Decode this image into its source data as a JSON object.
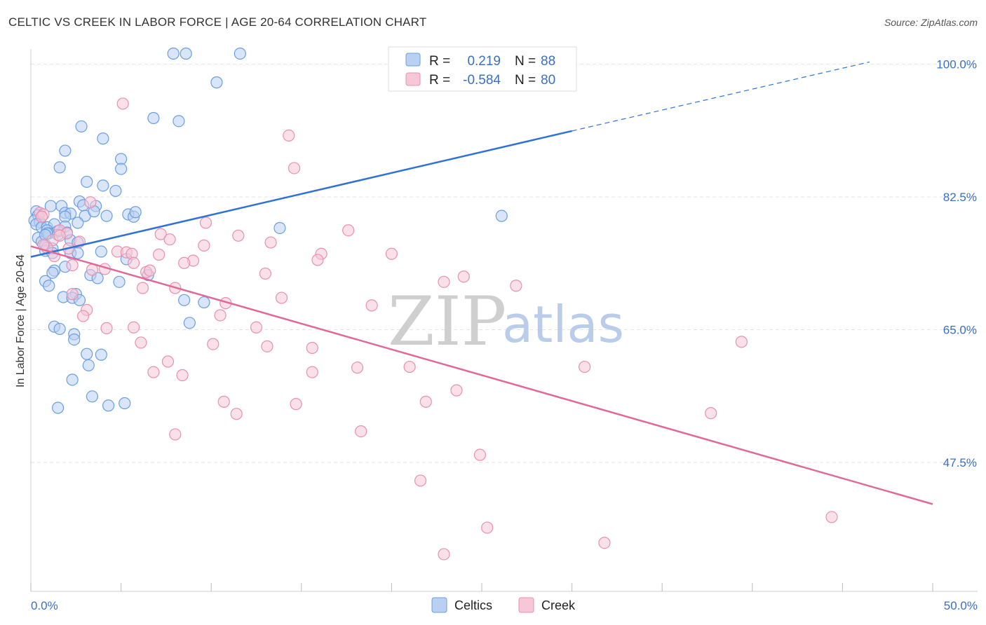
{
  "title": "CELTIC VS CREEK IN LABOR FORCE | AGE 20-64 CORRELATION CHART",
  "source": "Source: ZipAtlas.com",
  "watermark": {
    "zip": "ZIP",
    "atlas": "atlas"
  },
  "colors": {
    "celtics": "#6a9ee0",
    "celtics_fill": "#b9d0f2",
    "celtics_line": "#2f72d6",
    "creek": "#e890ad",
    "creek_fill": "#f6c8d7",
    "creek_line": "#e0699a",
    "tick_label": "#3a6fc4"
  },
  "legend": {
    "r_label": "R =",
    "n_label": "N =",
    "rows": [
      {
        "name": "Celtics",
        "r": "0.219",
        "n": "88"
      },
      {
        "name": "Creek",
        "r": "-0.584",
        "n": "80"
      }
    ]
  },
  "bottom_legend": [
    "Celtics",
    "Creek"
  ],
  "chart_data": {
    "type": "scatter",
    "title": "CELTIC VS CREEK IN LABOR FORCE | AGE 20-64 CORRELATION CHART",
    "xlabel": "",
    "ylabel": "In Labor Force | Age 20-64",
    "xlim": [
      0,
      50
    ],
    "ylim": [
      30.5,
      102
    ],
    "x_tick_labels": [
      "0.0%",
      "50.0%"
    ],
    "y_ticks": [
      47.5,
      65.0,
      82.5,
      100.0
    ],
    "y_tick_labels": [
      "47.5%",
      "65.0%",
      "82.5%",
      "100.0%"
    ],
    "grid": "horizontal dashed",
    "legend_position": "top-center",
    "series": [
      {
        "name": "Celtics",
        "points": [
          [
            7.9,
            101.4
          ],
          [
            8.6,
            101.4
          ],
          [
            11.6,
            101.4
          ],
          [
            10.3,
            97.6
          ],
          [
            6.8,
            92.9
          ],
          [
            8.2,
            92.5
          ],
          [
            2.8,
            91.8
          ],
          [
            4.0,
            90.2
          ],
          [
            1.9,
            88.6
          ],
          [
            5.0,
            87.5
          ],
          [
            1.6,
            86.4
          ],
          [
            5.0,
            86.2
          ],
          [
            3.1,
            84.5
          ],
          [
            4.0,
            84.0
          ],
          [
            4.7,
            83.3
          ],
          [
            2.7,
            81.9
          ],
          [
            2.9,
            81.4
          ],
          [
            1.1,
            81.3
          ],
          [
            1.7,
            81.3
          ],
          [
            0.3,
            80.6
          ],
          [
            0.4,
            80.1
          ],
          [
            1.9,
            80.4
          ],
          [
            2.2,
            80.3
          ],
          [
            3.0,
            80.0
          ],
          [
            4.2,
            80.0
          ],
          [
            5.4,
            80.2
          ],
          [
            5.7,
            79.9
          ],
          [
            1.9,
            79.9
          ],
          [
            0.2,
            79.4
          ],
          [
            0.5,
            79.2
          ],
          [
            0.3,
            78.9
          ],
          [
            0.6,
            78.5
          ],
          [
            0.9,
            78.5
          ],
          [
            1.3,
            78.9
          ],
          [
            1.9,
            78.6
          ],
          [
            1.5,
            78.0
          ],
          [
            0.9,
            78.1
          ],
          [
            1.0,
            77.7
          ],
          [
            2.0,
            77.8
          ],
          [
            0.4,
            77.1
          ],
          [
            0.6,
            76.6
          ],
          [
            0.8,
            76.2
          ],
          [
            2.2,
            76.8
          ],
          [
            2.6,
            76.5
          ],
          [
            1.2,
            75.7
          ],
          [
            0.8,
            75.4
          ],
          [
            1.2,
            75.1
          ],
          [
            2.2,
            75.1
          ],
          [
            2.6,
            75.1
          ],
          [
            3.9,
            75.3
          ],
          [
            5.3,
            74.3
          ],
          [
            1.9,
            73.3
          ],
          [
            1.3,
            72.8
          ],
          [
            1.2,
            72.5
          ],
          [
            3.3,
            72.2
          ],
          [
            3.7,
            71.8
          ],
          [
            6.5,
            72.2
          ],
          [
            0.8,
            71.4
          ],
          [
            1.0,
            70.8
          ],
          [
            4.9,
            71.3
          ],
          [
            2.5,
            69.7
          ],
          [
            1.8,
            69.3
          ],
          [
            2.3,
            69.2
          ],
          [
            2.7,
            68.9
          ],
          [
            8.5,
            68.9
          ],
          [
            9.6,
            68.6
          ],
          [
            8.8,
            65.9
          ],
          [
            1.3,
            65.4
          ],
          [
            1.6,
            65.1
          ],
          [
            2.4,
            64.4
          ],
          [
            2.4,
            63.7
          ],
          [
            3.1,
            61.8
          ],
          [
            3.9,
            61.7
          ],
          [
            3.2,
            60.3
          ],
          [
            2.3,
            58.4
          ],
          [
            3.4,
            56.2
          ],
          [
            4.3,
            55.0
          ],
          [
            5.2,
            55.3
          ],
          [
            1.5,
            54.7
          ],
          [
            26.1,
            80.0
          ],
          [
            13.8,
            78.4
          ],
          [
            5.8,
            80.5
          ],
          [
            3.6,
            81.3
          ],
          [
            1.5,
            77.5
          ],
          [
            0.9,
            77.7
          ],
          [
            0.8,
            77.5
          ],
          [
            2.6,
            79.1
          ],
          [
            3.5,
            80.6
          ]
        ]
      },
      {
        "name": "Creek",
        "points": [
          [
            5.1,
            94.8
          ],
          [
            14.3,
            90.6
          ],
          [
            14.6,
            86.3
          ],
          [
            3.3,
            81.8
          ],
          [
            0.5,
            80.4
          ],
          [
            0.7,
            80.2
          ],
          [
            0.6,
            79.9
          ],
          [
            9.7,
            79.1
          ],
          [
            17.6,
            78.1
          ],
          [
            1.6,
            78.1
          ],
          [
            2.0,
            77.7
          ],
          [
            7.2,
            77.6
          ],
          [
            11.5,
            77.4
          ],
          [
            7.7,
            76.9
          ],
          [
            1.2,
            76.8
          ],
          [
            13.3,
            76.5
          ],
          [
            2.7,
            76.6
          ],
          [
            9.6,
            76.1
          ],
          [
            0.9,
            75.8
          ],
          [
            4.8,
            75.3
          ],
          [
            5.3,
            75.2
          ],
          [
            5.6,
            75.0
          ],
          [
            16.1,
            75.0
          ],
          [
            20.0,
            75.0
          ],
          [
            7.1,
            74.9
          ],
          [
            1.3,
            74.7
          ],
          [
            9.0,
            74.1
          ],
          [
            8.5,
            73.8
          ],
          [
            15.9,
            74.2
          ],
          [
            5.7,
            73.8
          ],
          [
            2.3,
            73.5
          ],
          [
            3.4,
            72.9
          ],
          [
            6.4,
            72.6
          ],
          [
            6.6,
            72.8
          ],
          [
            13.0,
            72.4
          ],
          [
            24.0,
            72.0
          ],
          [
            22.9,
            71.3
          ],
          [
            26.9,
            70.8
          ],
          [
            6.2,
            70.5
          ],
          [
            8.0,
            70.5
          ],
          [
            2.3,
            69.7
          ],
          [
            13.9,
            69.2
          ],
          [
            10.8,
            68.5
          ],
          [
            18.9,
            68.2
          ],
          [
            3.1,
            67.6
          ],
          [
            2.9,
            66.8
          ],
          [
            10.5,
            66.9
          ],
          [
            4.2,
            65.2
          ],
          [
            5.7,
            65.3
          ],
          [
            12.5,
            65.3
          ],
          [
            39.4,
            63.4
          ],
          [
            6.1,
            63.3
          ],
          [
            10.1,
            63.1
          ],
          [
            13.1,
            62.8
          ],
          [
            15.6,
            62.6
          ],
          [
            7.6,
            60.8
          ],
          [
            18.1,
            60.0
          ],
          [
            21.0,
            60.1
          ],
          [
            30.7,
            60.1
          ],
          [
            6.8,
            59.4
          ],
          [
            15.6,
            59.4
          ],
          [
            8.4,
            59.0
          ],
          [
            23.6,
            57.0
          ],
          [
            10.7,
            55.5
          ],
          [
            21.9,
            55.5
          ],
          [
            14.7,
            55.2
          ],
          [
            11.4,
            53.9
          ],
          [
            37.7,
            54.0
          ],
          [
            18.3,
            51.6
          ],
          [
            8.0,
            51.2
          ],
          [
            24.9,
            48.5
          ],
          [
            21.6,
            45.1
          ],
          [
            44.4,
            40.3
          ],
          [
            25.3,
            38.9
          ],
          [
            31.8,
            36.9
          ],
          [
            22.9,
            35.4
          ],
          [
            1.6,
            77.4
          ],
          [
            0.7,
            76.2
          ],
          [
            2.1,
            75.7
          ],
          [
            4.1,
            73.0
          ]
        ]
      }
    ],
    "trend_lines": [
      {
        "name": "Celtics",
        "from": [
          0,
          74.6
        ],
        "to": [
          30,
          91.2
        ],
        "extension_to": [
          46.5,
          100.3
        ]
      },
      {
        "name": "Creek",
        "from": [
          0,
          76.0
        ],
        "to": [
          50,
          42.0
        ]
      }
    ]
  }
}
